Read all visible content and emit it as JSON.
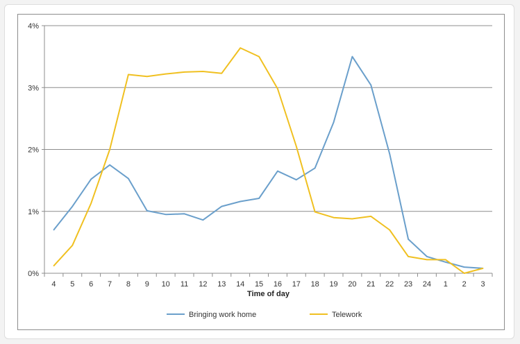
{
  "chart_data": {
    "type": "line",
    "xlabel": "Time of day",
    "ylabel": "",
    "categories": [
      "4",
      "5",
      "6",
      "7",
      "8",
      "9",
      "10",
      "11",
      "12",
      "13",
      "14",
      "15",
      "16",
      "17",
      "18",
      "19",
      "20",
      "21",
      "22",
      "23",
      "24",
      "1",
      "2",
      "3"
    ],
    "ylim": [
      0,
      4
    ],
    "yticks": [
      0,
      1,
      2,
      3,
      4
    ],
    "ytick_labels": [
      "0%",
      "1%",
      "2%",
      "3%",
      "4%"
    ],
    "grid": "horizontal",
    "legend_position": "bottom",
    "series": [
      {
        "name": "Bringing work home",
        "color": "#6a9fcb",
        "values": [
          0.7,
          1.08,
          1.52,
          1.75,
          1.53,
          1.01,
          0.95,
          0.96,
          0.86,
          1.08,
          1.16,
          1.21,
          1.65,
          1.51,
          1.7,
          2.44,
          3.5,
          3.04,
          1.93,
          0.55,
          0.27,
          0.18,
          0.1,
          0.08
        ]
      },
      {
        "name": "Telework",
        "color": "#f0c020",
        "values": [
          0.12,
          0.45,
          1.13,
          2.0,
          3.21,
          3.18,
          3.22,
          3.25,
          3.26,
          3.23,
          3.64,
          3.5,
          2.98,
          2.05,
          0.99,
          0.9,
          0.88,
          0.92,
          0.7,
          0.27,
          0.22,
          0.22,
          0.0,
          0.08
        ]
      }
    ]
  }
}
